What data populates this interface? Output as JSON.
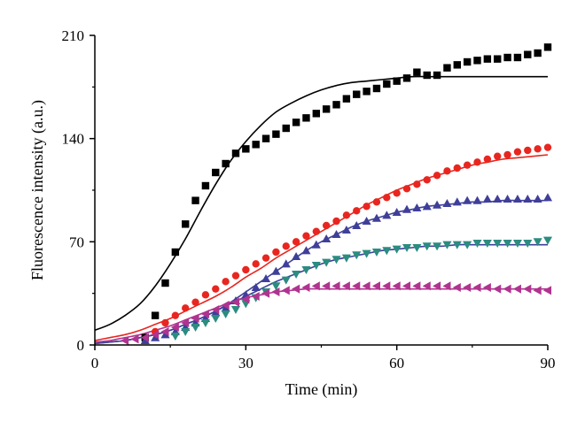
{
  "chart_data": {
    "type": "scatter",
    "xlabel": "Time (min)",
    "ylabel": "Fluorescence intensity (a.u.)",
    "xlim": [
      0,
      90
    ],
    "ylim": [
      0,
      210
    ],
    "xticks": [
      0,
      30,
      60,
      90
    ],
    "yticks": [
      0,
      70,
      140,
      210
    ],
    "grid": false,
    "legend": "none",
    "series": [
      {
        "marker": "square",
        "color": "#000000",
        "fit_color": "#000000",
        "x": [
          10,
          12,
          14,
          16,
          18,
          20,
          22,
          24,
          26,
          28,
          30,
          32,
          34,
          36,
          38,
          40,
          42,
          44,
          46,
          48,
          50,
          52,
          54,
          56,
          58,
          60,
          62,
          64,
          66,
          68,
          70,
          72,
          74,
          76,
          78,
          80,
          82,
          84,
          86,
          88,
          90
        ],
        "y": [
          5,
          20,
          42,
          63,
          82,
          98,
          108,
          117,
          123,
          130,
          133,
          136,
          140,
          143,
          147,
          151,
          154,
          157,
          160,
          163,
          167,
          170,
          172,
          174,
          177,
          179,
          181,
          185,
          183,
          183,
          188,
          190,
          192,
          193,
          194,
          194,
          195,
          195,
          197,
          198,
          202
        ],
        "fit_x": [
          0,
          3,
          6,
          9,
          12,
          15,
          18,
          21,
          24,
          27,
          30,
          33,
          36,
          39,
          42,
          45,
          48,
          51,
          54,
          57,
          60,
          63,
          66,
          69,
          72,
          75,
          78,
          81,
          84,
          87,
          90
        ],
        "fit_y": [
          10,
          14,
          20,
          28,
          40,
          55,
          72,
          91,
          109,
          125,
          138,
          149,
          158,
          164,
          169,
          173,
          176,
          178,
          179,
          180,
          181,
          182,
          182,
          182,
          182,
          182,
          182,
          182,
          182,
          182,
          182
        ]
      },
      {
        "marker": "circle",
        "color": "#e8261f",
        "fit_color": "#e8261f",
        "x": [
          12,
          14,
          16,
          18,
          20,
          22,
          24,
          26,
          28,
          30,
          32,
          34,
          36,
          38,
          40,
          42,
          44,
          46,
          48,
          50,
          52,
          54,
          56,
          58,
          60,
          62,
          64,
          66,
          68,
          70,
          72,
          74,
          76,
          78,
          80,
          82,
          84,
          86,
          88,
          90
        ],
        "y": [
          9,
          15,
          20,
          25,
          29,
          34,
          38,
          43,
          47,
          51,
          55,
          59,
          63,
          67,
          70,
          74,
          77,
          81,
          84,
          88,
          91,
          94,
          97,
          100,
          103,
          106,
          109,
          112,
          115,
          118,
          120,
          122,
          124,
          126,
          128,
          129,
          131,
          132,
          133,
          134
        ],
        "fit_x": [
          0,
          3,
          6,
          9,
          12,
          15,
          18,
          21,
          24,
          27,
          30,
          33,
          36,
          39,
          42,
          45,
          48,
          51,
          54,
          57,
          60,
          63,
          66,
          69,
          72,
          75,
          78,
          81,
          84,
          87,
          90
        ],
        "fit_y": [
          3,
          5,
          7,
          10,
          14,
          18,
          23,
          28,
          33,
          39,
          46,
          52,
          59,
          65,
          71,
          77,
          83,
          89,
          95,
          100,
          105,
          109,
          113,
          116,
          119,
          122,
          124,
          126,
          127,
          128,
          129
        ]
      },
      {
        "marker": "triangle-up",
        "color": "#3f3f9a",
        "fit_color": "#3f3f9a",
        "x": [
          10,
          12,
          14,
          16,
          18,
          20,
          22,
          24,
          26,
          28,
          30,
          32,
          34,
          36,
          38,
          40,
          42,
          44,
          46,
          48,
          50,
          52,
          54,
          56,
          58,
          60,
          62,
          64,
          66,
          68,
          70,
          72,
          74,
          76,
          78,
          80,
          82,
          84,
          86,
          88,
          90
        ],
        "y": [
          3,
          5,
          7,
          9,
          12,
          15,
          18,
          22,
          25,
          30,
          34,
          39,
          45,
          50,
          55,
          60,
          64,
          68,
          72,
          75,
          78,
          81,
          84,
          86,
          88,
          90,
          92,
          93,
          94,
          95,
          96,
          97,
          98,
          98,
          99,
          99,
          99,
          99,
          99,
          99,
          100
        ],
        "fit_x": [
          0,
          3,
          6,
          9,
          12,
          15,
          18,
          21,
          24,
          27,
          30,
          33,
          36,
          39,
          42,
          45,
          48,
          51,
          54,
          57,
          60,
          63,
          66,
          69,
          72,
          75,
          78,
          81,
          84,
          87,
          90
        ],
        "fit_y": [
          1,
          2,
          3,
          5,
          7,
          10,
          14,
          18,
          23,
          29,
          36,
          43,
          50,
          57,
          64,
          70,
          75,
          80,
          84,
          87,
          90,
          92,
          94,
          95,
          96,
          97,
          97,
          98,
          98,
          98,
          98
        ]
      },
      {
        "marker": "triangle-down",
        "color": "#2b8c80",
        "fit_color": "#3f3f9a",
        "x": [
          16,
          18,
          20,
          22,
          24,
          26,
          28,
          30,
          32,
          34,
          36,
          38,
          40,
          42,
          44,
          46,
          48,
          50,
          52,
          54,
          56,
          58,
          60,
          62,
          64,
          66,
          68,
          70,
          72,
          74,
          76,
          78,
          80,
          82,
          84,
          86,
          88,
          90
        ],
        "y": [
          6,
          9,
          12,
          15,
          18,
          21,
          24,
          28,
          32,
          36,
          40,
          44,
          48,
          51,
          54,
          56,
          58,
          59,
          61,
          62,
          63,
          64,
          65,
          66,
          66,
          67,
          67,
          68,
          68,
          68,
          69,
          69,
          69,
          69,
          69,
          69,
          70,
          71
        ],
        "fit_x": [
          0,
          3,
          6,
          9,
          12,
          15,
          18,
          21,
          24,
          27,
          30,
          33,
          36,
          39,
          42,
          45,
          48,
          51,
          54,
          57,
          60,
          63,
          66,
          69,
          72,
          75,
          78,
          81,
          84,
          87,
          90
        ],
        "fit_y": [
          1,
          2,
          3,
          5,
          7,
          10,
          14,
          18,
          23,
          28,
          33,
          38,
          43,
          47,
          51,
          55,
          58,
          60,
          62,
          64,
          65,
          66,
          67,
          67,
          68,
          68,
          68,
          68,
          68,
          68,
          68
        ]
      },
      {
        "marker": "triangle-left",
        "color": "#b0338f",
        "fit_color": "#b0338f",
        "x": [
          6,
          8,
          10,
          12,
          14,
          16,
          18,
          20,
          22,
          24,
          26,
          28,
          30,
          32,
          34,
          36,
          38,
          40,
          42,
          44,
          46,
          48,
          50,
          52,
          54,
          56,
          58,
          60,
          62,
          64,
          66,
          68,
          70,
          72,
          74,
          76,
          78,
          80,
          82,
          84,
          86,
          88,
          90
        ],
        "y": [
          3,
          4,
          5,
          7,
          9,
          12,
          15,
          18,
          21,
          24,
          27,
          29,
          31,
          33,
          35,
          36,
          37,
          38,
          39,
          40,
          40,
          40,
          40,
          40,
          40,
          40,
          40,
          40,
          40,
          40,
          40,
          40,
          40,
          39,
          39,
          39,
          39,
          38,
          38,
          38,
          38,
          37,
          37
        ],
        "fit_x": [
          0,
          3,
          6,
          9,
          12,
          15,
          18,
          21,
          24,
          27,
          30,
          33,
          36,
          39,
          42,
          45,
          48,
          51,
          54,
          57,
          60,
          63,
          66,
          69,
          72,
          75,
          78,
          81,
          84,
          87,
          90
        ],
        "fit_y": [
          2,
          3,
          5,
          7,
          10,
          13,
          17,
          21,
          25,
          29,
          32,
          34,
          36,
          37,
          38,
          38,
          38,
          38,
          38,
          38,
          38,
          38,
          38,
          38,
          38,
          38,
          38,
          38,
          38,
          38,
          38
        ]
      }
    ]
  }
}
